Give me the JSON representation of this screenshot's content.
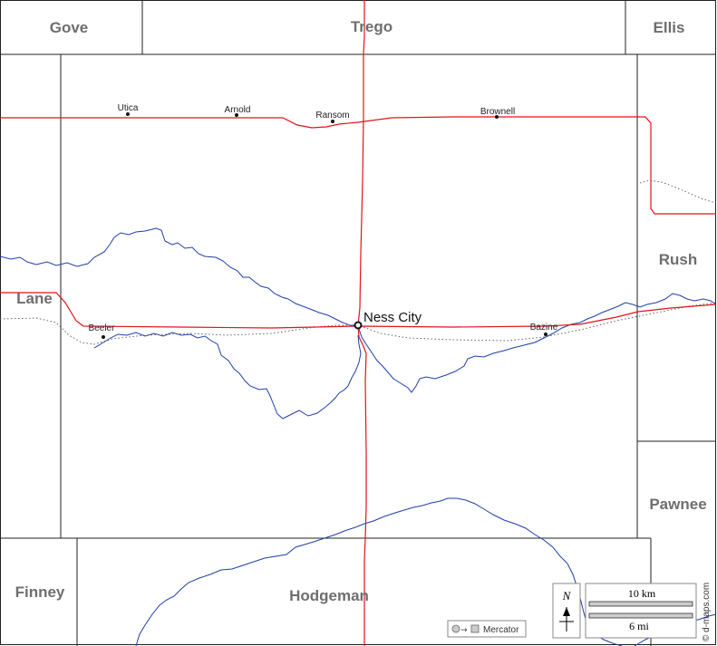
{
  "counties": {
    "gove": "Gove",
    "trego": "Trego",
    "ellis": "Ellis",
    "lane": "Lane",
    "rush": "Rush",
    "pawnee": "Pawnee",
    "finney": "Finney",
    "hodgeman": "Hodgeman"
  },
  "towns": {
    "utica": "Utica",
    "arnold": "Arnold",
    "ransom": "Ransom",
    "brownell": "Brownell",
    "beeler": "Beeler",
    "bazine": "Bazine",
    "ness_city": "Ness City"
  },
  "legend": {
    "north": "N",
    "scale_km": "10 km",
    "scale_mi": "6 mi",
    "projection": "Mercator",
    "credit": "© d-maps.com"
  },
  "colors": {
    "road": "#e0141b",
    "river": "#1f3fa8",
    "label": "#6e6e6e"
  }
}
